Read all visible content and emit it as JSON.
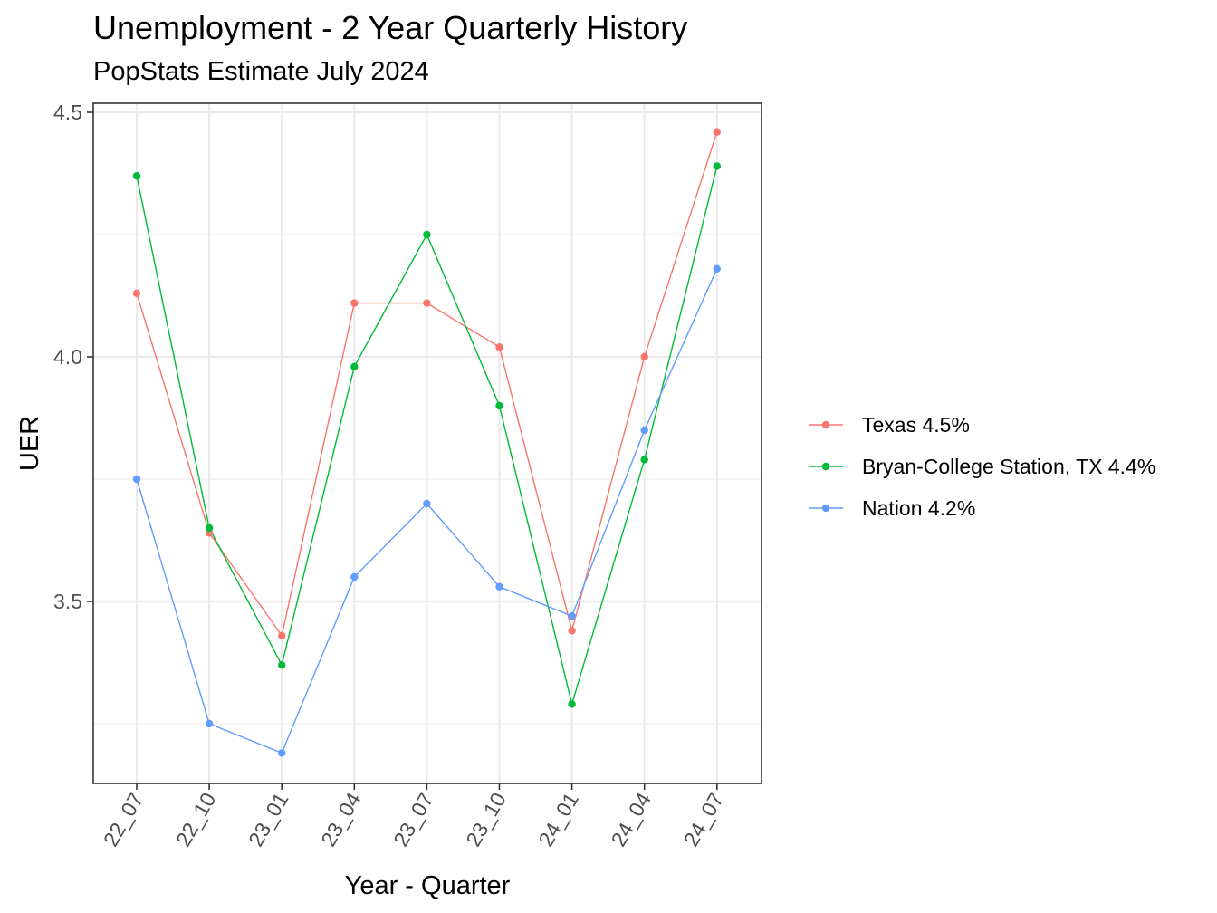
{
  "chart_data": {
    "type": "line",
    "title": "Unemployment - 2 Year Quarterly History",
    "subtitle": "PopStats Estimate July 2024",
    "xlabel": "Year - Quarter",
    "ylabel": "UER",
    "categories": [
      "22_07",
      "22_10",
      "23_01",
      "23_04",
      "23_07",
      "23_10",
      "24_01",
      "24_04",
      "24_07"
    ],
    "yticks": [
      "3.5",
      "4.0",
      "4.5"
    ],
    "ylim": [
      3.14,
      4.52
    ],
    "grid": true,
    "legend_position": "right",
    "series": [
      {
        "name": "Texas 4.5%",
        "color": "#F8766D",
        "values": [
          4.13,
          3.64,
          3.43,
          4.11,
          4.11,
          4.02,
          3.44,
          4.0,
          4.46
        ]
      },
      {
        "name": "Bryan-College Station, TX 4.4%",
        "color": "#00BA38",
        "values": [
          4.37,
          3.65,
          3.37,
          3.98,
          4.25,
          3.9,
          3.29,
          3.79,
          4.39
        ]
      },
      {
        "name": "Nation 4.2%",
        "color": "#619CFF",
        "values": [
          3.75,
          3.25,
          3.19,
          3.55,
          3.7,
          3.53,
          3.47,
          3.85,
          4.18
        ]
      }
    ]
  }
}
